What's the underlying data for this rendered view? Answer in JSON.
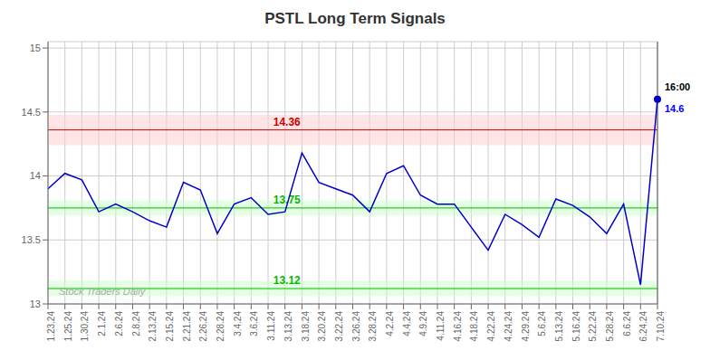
{
  "chart_data": {
    "type": "line",
    "title": "PSTL Long Term Signals",
    "categories": [
      "1.23.24",
      "1.25.24",
      "1.30.24",
      "2.1.24",
      "2.6.24",
      "2.8.24",
      "2.13.24",
      "2.15.24",
      "2.21.24",
      "2.26.24",
      "2.28.24",
      "3.4.24",
      "3.6.24",
      "3.11.24",
      "3.13.24",
      "3.18.24",
      "3.20.24",
      "3.22.24",
      "3.26.24",
      "3.28.24",
      "4.2.24",
      "4.4.24",
      "4.9.24",
      "4.11.24",
      "4.16.24",
      "4.18.24",
      "4.22.24",
      "4.24.24",
      "4.29.24",
      "5.6.24",
      "5.13.24",
      "5.16.24",
      "5.22.24",
      "5.28.24",
      "6.6.24",
      "6.24.24",
      "7.10.24"
    ],
    "values": [
      13.9,
      14.02,
      13.97,
      13.72,
      13.78,
      13.72,
      13.65,
      13.6,
      13.95,
      13.89,
      13.55,
      13.78,
      13.83,
      13.7,
      13.72,
      14.18,
      13.95,
      13.9,
      13.85,
      13.72,
      14.02,
      14.08,
      13.85,
      13.78,
      13.78,
      13.6,
      13.42,
      13.7,
      13.62,
      13.52,
      13.82,
      13.77,
      13.68,
      13.55,
      13.78,
      13.15,
      14.6
    ],
    "color": "#0000cc",
    "ylim": [
      13.0,
      15.05
    ],
    "yticks": [
      13,
      13.5,
      14,
      14.5,
      15
    ],
    "grid": true,
    "hlines": [
      {
        "value": 14.36,
        "label": "14.36",
        "color": "#cc0000",
        "band": [
          14.24,
          14.48
        ],
        "band_color": "#ffcccc"
      },
      {
        "value": 13.75,
        "label": "13.75",
        "color": "#00bb00",
        "band": [
          13.69,
          13.81
        ],
        "band_color": "#ccffcc"
      },
      {
        "value": 13.12,
        "label": "13.12",
        "color": "#00bb00",
        "band": [
          13.06,
          13.18
        ],
        "band_color": "#ccffcc"
      }
    ],
    "vline": {
      "category": "7.10.24",
      "color": "#555555"
    },
    "last_point": {
      "value": 14.6,
      "label": "14.6",
      "color": "#0000ff",
      "time": "16:00",
      "time_color": "#000000"
    },
    "watermark": {
      "text": "Stock Traders Daily",
      "color": "#aaaaaa"
    }
  }
}
